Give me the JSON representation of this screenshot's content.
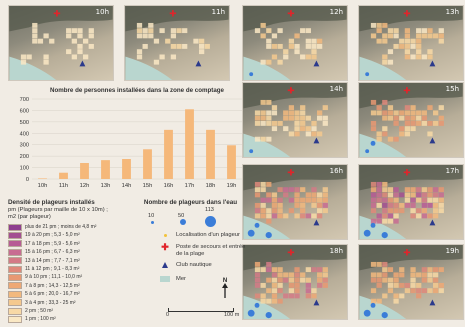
{
  "maps": [
    {
      "hour": "10h"
    },
    {
      "hour": "11h"
    },
    {
      "hour": "12h"
    },
    {
      "hour": "13h"
    },
    {
      "hour": "14h"
    },
    {
      "hour": "15h"
    },
    {
      "hour": "16h"
    },
    {
      "hour": "17h"
    },
    {
      "hour": "18h"
    },
    {
      "hour": "19h"
    }
  ],
  "chart_data": {
    "type": "bar",
    "title": "Nombre de personnes installées dans la zone de comptage",
    "categories": [
      "10h",
      "11h",
      "12h",
      "13h",
      "14h",
      "15h",
      "16h",
      "17h",
      "18h",
      "19h"
    ],
    "values": [
      5,
      55,
      140,
      165,
      175,
      260,
      430,
      610,
      430,
      295
    ],
    "ylim": [
      0,
      700
    ],
    "yticks": [
      0,
      100,
      200,
      300,
      400,
      500,
      600,
      700
    ],
    "grid": true,
    "bar_color": "#f5b87a"
  },
  "density_legend": {
    "title": "Densité de plageurs installés",
    "subtitle_line1": "pm (Plageurs par maille de 10 x 10m) ;",
    "subtitle_line2": "m2 (par plageur)",
    "items": [
      {
        "label": "plus de 21 pm ; moins de 4,8 m²",
        "color": "#8e3f8f"
      },
      {
        "label": "19 à 20 pm ; 5,3 - 5,0 m²",
        "color": "#a34f92"
      },
      {
        "label": "17 à 18 pm ; 5,9 - 5,6 m²",
        "color": "#b75c95"
      },
      {
        "label": "15 à 16 pm ; 6,7 - 6,3 m²",
        "color": "#c86c92"
      },
      {
        "label": "13 à 14 pm ; 7,7 - 7,1 m²",
        "color": "#d47a86"
      },
      {
        "label": "11 à 12 pm ; 9,1 - 8,3 m²",
        "color": "#df887a"
      },
      {
        "label": "9 à 10 pm ; 11,1 - 10,0 m²",
        "color": "#e89872"
      },
      {
        "label": "7 à 8 pm ; 14,3 - 12,5 m²",
        "color": "#eea874"
      },
      {
        "label": "5 à 6 pm ; 20,0 - 16,7 m²",
        "color": "#f2b97e"
      },
      {
        "label": "3 à 4 pm ; 33,3 - 25 m²",
        "color": "#f5c98e"
      },
      {
        "label": "2 pm ; 50 m²",
        "color": "#f8d9a6"
      },
      {
        "label": "1 pm ; 100 m²",
        "color": "#fae8c4"
      }
    ]
  },
  "water_legend": {
    "title": "Nombre de plageurs dans l'eau",
    "values": [
      "10",
      "50",
      "113"
    ],
    "color": "#3b7dd8"
  },
  "symbols": {
    "plageur": "Localisation d'un plageur",
    "poste_line1": "Poste de secours et entrée",
    "poste_line2": "de la plage",
    "club": "Club nautique",
    "mer": "Mer",
    "plageur_color": "#f2c23a",
    "poste_color": "#e0252b",
    "club_color": "#2b3a8c",
    "mer_color": "#b9d6cf"
  },
  "scale": {
    "start": "0",
    "end": "100 m"
  },
  "north": {
    "label": "N"
  }
}
